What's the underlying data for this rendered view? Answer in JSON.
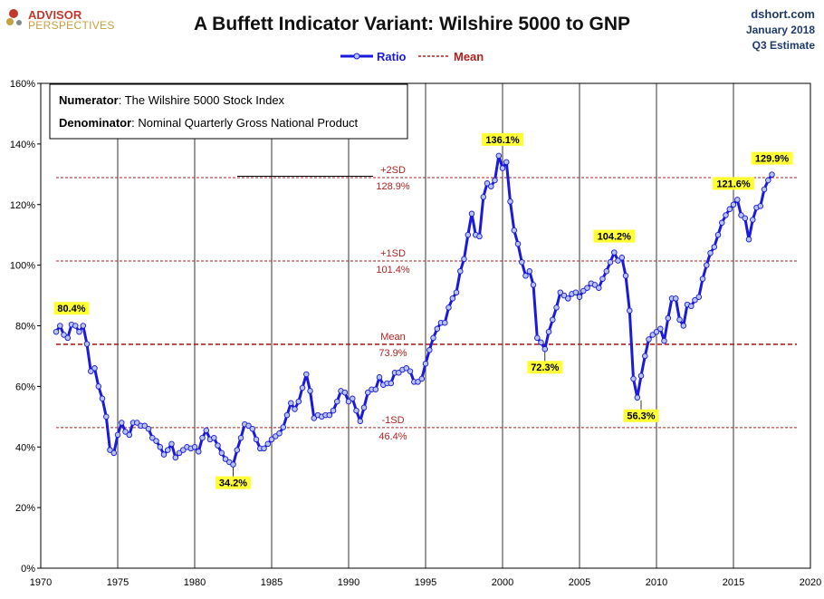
{
  "header": {
    "logo_line1": "ADVISOR",
    "logo_line2": "PERSPECTIVES",
    "source": "dshort.com",
    "date": "January 2018",
    "note": "Q3 Estimate"
  },
  "info_box": {
    "numerator_label": "Numerator",
    "numerator_text": ": The Wilshire 5000 Stock Index",
    "denominator_label": "Denominator",
    "denominator_text": ": Nominal Quarterly Gross National Product"
  },
  "colors": {
    "series": "#1a1adc",
    "marker_fill": "#b8c4f0",
    "reference": "#b22222",
    "highlight": "#ffff33",
    "grid": "#000000",
    "logo_red": "#c0392b",
    "logo_gold": "#c8a040"
  },
  "chart_data": {
    "type": "line",
    "title": "A Buffett Indicator Variant: Wilshire 5000 to GNP",
    "xlabel": "",
    "ylabel": "",
    "xlim": [
      1970,
      2020
    ],
    "ylim": [
      0,
      160
    ],
    "x_ticks": [
      1970,
      1975,
      1980,
      1985,
      1990,
      1995,
      2000,
      2005,
      2010,
      2015,
      2020
    ],
    "y_ticks": [
      0,
      20,
      40,
      60,
      80,
      100,
      120,
      140,
      160
    ],
    "y_tick_labels": [
      "0%",
      "20%",
      "40%",
      "60%",
      "80%",
      "100%",
      "120%",
      "140%",
      "160%"
    ],
    "grid": "vertical lines at x ticks",
    "legend": {
      "position": "top-center",
      "entries": [
        "Ratio",
        "Mean"
      ]
    },
    "series": [
      {
        "name": "Ratio",
        "x": [
          1971.0,
          1971.25,
          1971.5,
          1971.75,
          1972.0,
          1972.25,
          1972.5,
          1972.75,
          1973.0,
          1973.25,
          1973.5,
          1973.75,
          1974.0,
          1974.25,
          1974.5,
          1974.75,
          1975.0,
          1975.25,
          1975.5,
          1975.75,
          1976.0,
          1976.25,
          1976.5,
          1976.75,
          1977.0,
          1977.25,
          1977.5,
          1977.75,
          1978.0,
          1978.25,
          1978.5,
          1978.75,
          1979.0,
          1979.25,
          1979.5,
          1979.75,
          1980.0,
          1980.25,
          1980.5,
          1980.75,
          1981.0,
          1981.25,
          1981.5,
          1981.75,
          1982.0,
          1982.25,
          1982.5,
          1982.75,
          1983.0,
          1983.25,
          1983.5,
          1983.75,
          1984.0,
          1984.25,
          1984.5,
          1984.75,
          1985.0,
          1985.25,
          1985.5,
          1985.75,
          1986.0,
          1986.25,
          1986.5,
          1986.75,
          1987.0,
          1987.25,
          1987.5,
          1987.75,
          1988.0,
          1988.25,
          1988.5,
          1988.75,
          1989.0,
          1989.25,
          1989.5,
          1989.75,
          1990.0,
          1990.25,
          1990.5,
          1990.75,
          1991.0,
          1991.25,
          1991.5,
          1991.75,
          1992.0,
          1992.25,
          1992.5,
          1992.75,
          1993.0,
          1993.25,
          1993.5,
          1993.75,
          1994.0,
          1994.25,
          1994.5,
          1994.75,
          1995.0,
          1995.25,
          1995.5,
          1995.75,
          1996.0,
          1996.25,
          1996.5,
          1996.75,
          1997.0,
          1997.25,
          1997.5,
          1997.75,
          1998.0,
          1998.25,
          1998.5,
          1998.75,
          1999.0,
          1999.25,
          1999.5,
          1999.75,
          2000.0,
          2000.25,
          2000.5,
          2000.75,
          2001.0,
          2001.25,
          2001.5,
          2001.75,
          2002.0,
          2002.25,
          2002.5,
          2002.75,
          2003.0,
          2003.25,
          2003.5,
          2003.75,
          2004.0,
          2004.25,
          2004.5,
          2004.75,
          2005.0,
          2005.25,
          2005.5,
          2005.75,
          2006.0,
          2006.25,
          2006.5,
          2006.75,
          2007.0,
          2007.25,
          2007.5,
          2007.75,
          2008.0,
          2008.25,
          2008.5,
          2008.75,
          2009.0,
          2009.25,
          2009.5,
          2009.75,
          2010.0,
          2010.25,
          2010.5,
          2010.75,
          2011.0,
          2011.25,
          2011.5,
          2011.75,
          2012.0,
          2012.25,
          2012.5,
          2012.75,
          2013.0,
          2013.25,
          2013.5,
          2013.75,
          2014.0,
          2014.25,
          2014.5,
          2014.75,
          2015.0,
          2015.25,
          2015.5,
          2015.75,
          2016.0,
          2016.25,
          2016.5,
          2016.75,
          2017.0,
          2017.25,
          2017.5
        ],
        "values": [
          78.0,
          80.0,
          77.0,
          76.0,
          80.4,
          80.0,
          78.0,
          80.0,
          74.0,
          65.0,
          66.0,
          60.0,
          56.0,
          50.0,
          39.0,
          38.0,
          44.0,
          48.0,
          45.0,
          44.0,
          48.0,
          48.0,
          47.0,
          47.0,
          46.0,
          43.0,
          42.0,
          40.0,
          37.5,
          39.0,
          41.0,
          36.5,
          38.0,
          39.0,
          40.0,
          39.5,
          40.0,
          38.5,
          43.0,
          45.5,
          42.5,
          43.0,
          40.5,
          38.0,
          36.0,
          35.0,
          34.2,
          39.0,
          43.0,
          47.5,
          47.0,
          46.0,
          42.5,
          39.5,
          39.5,
          41.0,
          42.5,
          43.5,
          44.5,
          46.5,
          50.5,
          54.5,
          52.5,
          55.0,
          59.5,
          64.0,
          58.5,
          49.5,
          50.5,
          50.0,
          50.5,
          50.5,
          52.0,
          55.0,
          58.5,
          58.0,
          55.0,
          56.0,
          52.0,
          48.5,
          53.0,
          58.0,
          59.0,
          59.0,
          63.0,
          60.5,
          61.0,
          61.0,
          64.5,
          64.5,
          65.5,
          66.0,
          65.0,
          61.5,
          61.5,
          62.5,
          67.5,
          72.0,
          76.0,
          79.0,
          81.0,
          81.0,
          86.0,
          89.0,
          91.0,
          98.0,
          102.0,
          110.0,
          117.0,
          110.0,
          109.5,
          122.5,
          127.0,
          126.0,
          128.0,
          136.1,
          132.0,
          134.0,
          121.0,
          111.5,
          107.0,
          101.0,
          96.5,
          98.0,
          93.5,
          76.0,
          74.5,
          72.3,
          78.0,
          82.0,
          86.0,
          91.0,
          90.0,
          89.0,
          90.5,
          91.0,
          89.5,
          91.5,
          92.5,
          94.0,
          93.5,
          92.5,
          95.5,
          98.0,
          101.0,
          104.2,
          101.5,
          102.5,
          96.5,
          85.0,
          62.5,
          56.3,
          63.5,
          70.0,
          75.5,
          77.0,
          78.0,
          79.0,
          75.0,
          82.5,
          89.0,
          89.0,
          82.0,
          80.0,
          87.0,
          86.5,
          88.5,
          89.5,
          95.5,
          100.0,
          104.0,
          106.0,
          110.0,
          114.0,
          116.5,
          118.5,
          120.0,
          121.6,
          116.5,
          115.5,
          108.5,
          115.0,
          119.0,
          119.5,
          125.0,
          128.0,
          129.9
        ]
      },
      {
        "name": "Mean",
        "values": [
          73.9
        ]
      }
    ],
    "reference_lines": [
      {
        "name": "+2SD",
        "value": 128.9,
        "label": "+2SD",
        "value_label": "128.9%"
      },
      {
        "name": "+1SD",
        "value": 101.4,
        "label": "+1SD",
        "value_label": "101.4%"
      },
      {
        "name": "Mean",
        "value": 73.9,
        "label": "Mean",
        "value_label": "73.9%"
      },
      {
        "name": "-1SD",
        "value": 46.4,
        "label": "-1SD",
        "value_label": "46.4%"
      }
    ],
    "annotations": [
      {
        "text": "80.4%",
        "x": 1972.0,
        "y": 80.4,
        "anchor": "above"
      },
      {
        "text": "34.2%",
        "x": 1982.5,
        "y": 34.2,
        "anchor": "below"
      },
      {
        "text": "136.1%",
        "x": 2000.0,
        "y": 136.1,
        "anchor": "above"
      },
      {
        "text": "72.3%",
        "x": 2002.75,
        "y": 72.3,
        "anchor": "below"
      },
      {
        "text": "104.2%",
        "x": 2007.25,
        "y": 104.2,
        "anchor": "above"
      },
      {
        "text": "56.3%",
        "x": 2009.0,
        "y": 56.3,
        "anchor": "below"
      },
      {
        "text": "121.6%",
        "x": 2015.0,
        "y": 121.6,
        "anchor": "above"
      },
      {
        "text": "129.9%",
        "x": 2017.5,
        "y": 129.9,
        "anchor": "above"
      }
    ]
  }
}
